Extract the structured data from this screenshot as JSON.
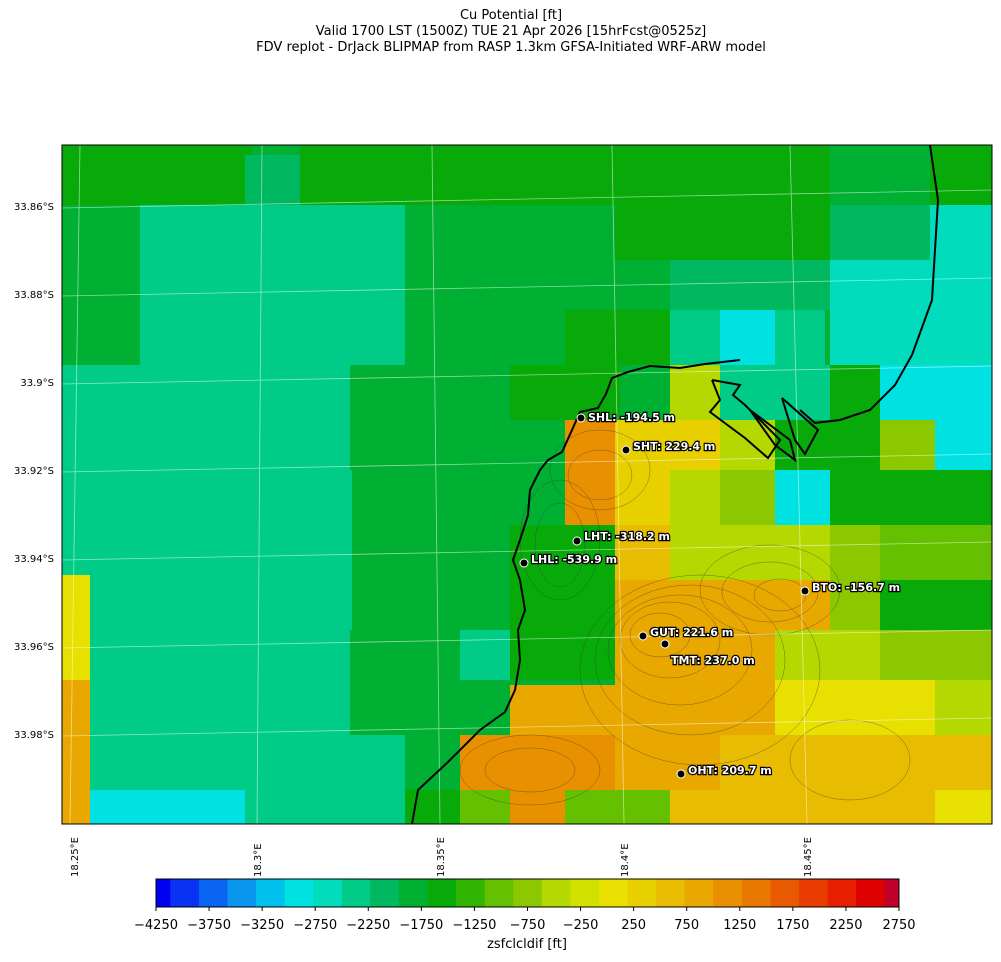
{
  "title_lines": [
    "Cu Potential [ft]",
    "Valid 1700 LST (1500Z) TUE 21 Apr 2026 [15hrFcst@0525z]",
    "FDV replot - DrJack BLIPMAP from RASP 1.3km GFSA-Initiated WRF-ARW model"
  ],
  "map": {
    "lat_ticks": [
      "33.86°S",
      "33.88°S",
      "33.9°S",
      "33.92°S",
      "33.94°S",
      "33.96°S",
      "33.98°S"
    ],
    "lon_ticks": [
      "18.25°E",
      "18.3°E",
      "18.35°E",
      "18.4°E",
      "18.45°E"
    ],
    "stations": [
      {
        "id": "SHL",
        "label": "SHL: -194.5 m"
      },
      {
        "id": "SHT",
        "label": "SHT: 229.4 m"
      },
      {
        "id": "LHT",
        "label": "LHT: -318.2 m"
      },
      {
        "id": "LHL",
        "label": "LHL: -539.9 m"
      },
      {
        "id": "BTO",
        "label": "BTO: -156.7 m"
      },
      {
        "id": "GUT",
        "label": "GUT: 221.6 m"
      },
      {
        "id": "TMT",
        "label": "TMT: 237.0 m"
      },
      {
        "id": "OHT",
        "label": "OHT: 209.7 m"
      }
    ]
  },
  "colorbar": {
    "label": "zsfclcldif [ft]",
    "min": -4250,
    "max": 2750,
    "step": 250,
    "tick_labels": [
      "−4250",
      "−3750",
      "−3250",
      "−2750",
      "−2250",
      "−1750",
      "−1250",
      "−750",
      "−250",
      "250",
      "750",
      "1250",
      "1750",
      "2250",
      "2750"
    ],
    "colors": [
      "#0000f0",
      "#0a32f2",
      "#0a64f2",
      "#0a96ee",
      "#00c0ee",
      "#00e2e2",
      "#00dcbc",
      "#00cc88",
      "#00b860",
      "#00b032",
      "#08aa0a",
      "#32b400",
      "#64c000",
      "#8cc800",
      "#b4d800",
      "#d2e000",
      "#e8e000",
      "#e8d000",
      "#e8bc00",
      "#e8a800",
      "#e89000",
      "#e87800",
      "#e85a00",
      "#e83c00",
      "#e81e00",
      "#dc0000",
      "#c00028"
    ]
  }
}
